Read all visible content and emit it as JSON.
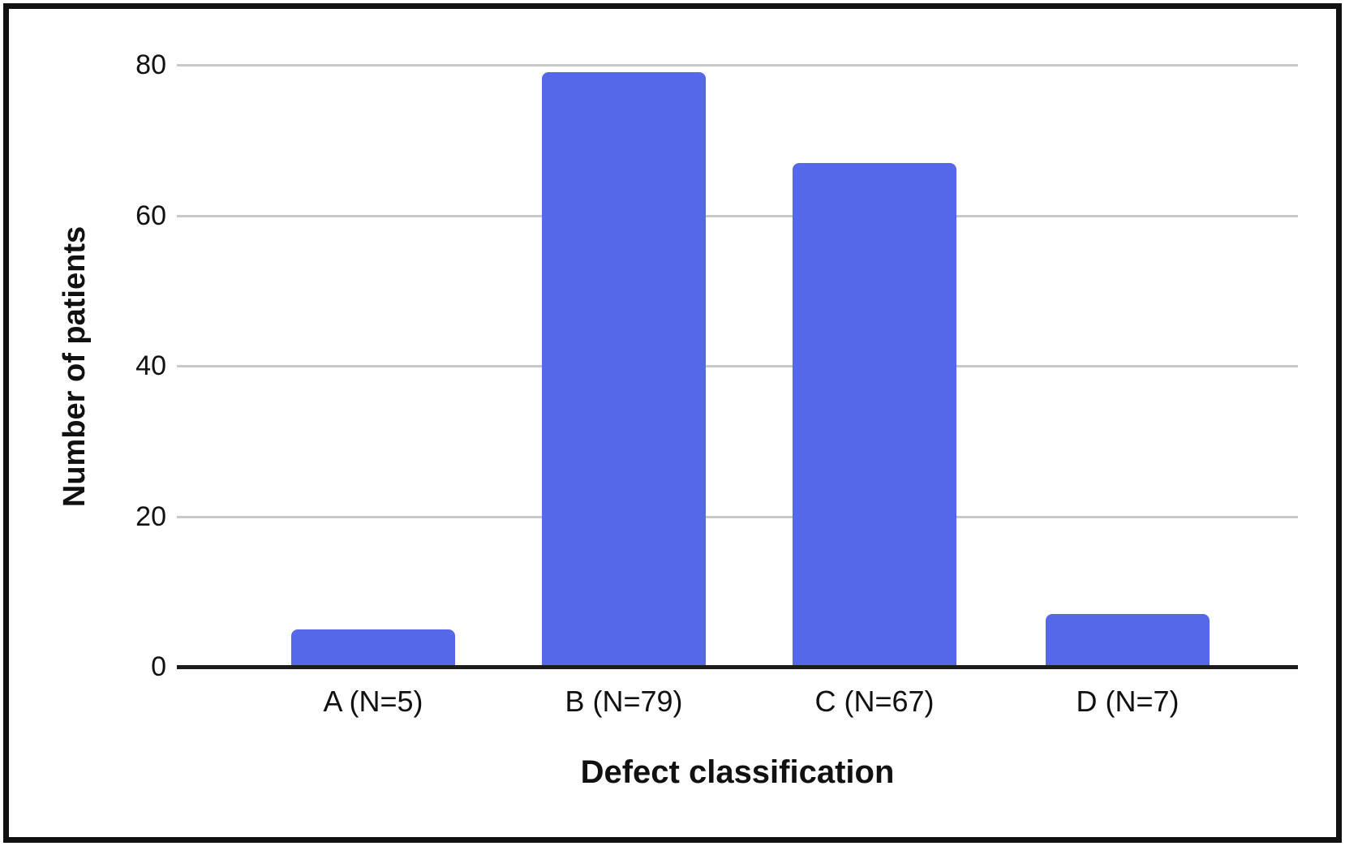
{
  "figure": {
    "background_color": "#ffffff",
    "border_color": "#111111"
  },
  "chart_data": {
    "type": "bar",
    "categories": [
      "A (N=5)",
      "B (N=79)",
      "C (N=67)",
      "D (N=7)"
    ],
    "values": [
      5,
      79,
      67,
      7
    ],
    "title": "",
    "xlabel": "Defect classification",
    "ylabel": "Number of patients",
    "ylim": [
      0,
      80
    ],
    "yticks": [
      0,
      20,
      40,
      60,
      80
    ],
    "grid": true,
    "legend": false,
    "bar_color": "#5569e8",
    "gridline_color": "#c8c8c8",
    "axis_color": "#1c1c1c",
    "text_color": "#111111"
  }
}
